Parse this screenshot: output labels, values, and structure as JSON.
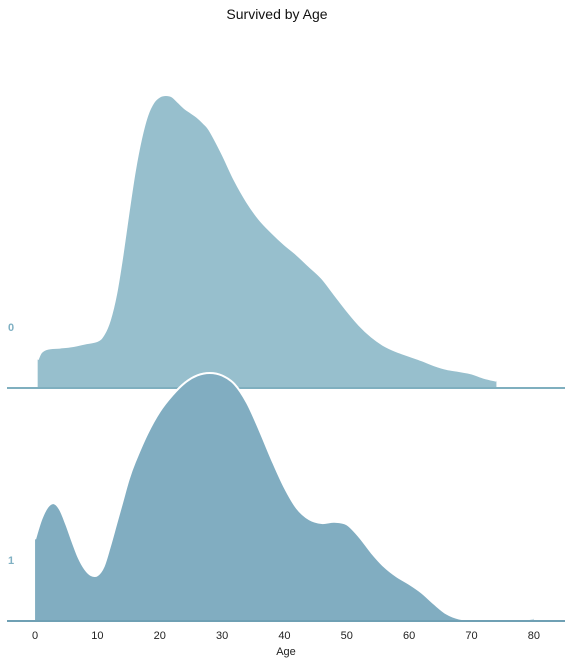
{
  "chart_data": {
    "type": "area",
    "title": "Survived by Age",
    "xlabel": "Age",
    "ylabel": "",
    "xlim": [
      -4.5,
      85
    ],
    "xticks": [
      0,
      10,
      20,
      30,
      40,
      50,
      60,
      70,
      80
    ],
    "grid": false,
    "legend": "none",
    "series": [
      {
        "name": "0",
        "color": "#97bfcd",
        "baseline_color": "#7fafbf",
        "label_color": "#7fb0c3",
        "x": [
          0.42,
          1,
          2,
          4,
          6,
          8,
          10,
          11,
          12,
          13,
          14,
          15,
          16,
          17,
          18,
          19,
          20,
          21,
          22,
          23,
          24,
          25,
          26,
          27,
          28,
          30,
          32,
          34,
          36,
          38,
          40,
          42,
          44,
          46,
          48,
          50,
          52,
          54,
          56,
          58,
          60,
          62,
          64,
          66,
          68,
          70,
          72,
          74
        ],
        "y": [
          0.097,
          0.122,
          0.134,
          0.138,
          0.143,
          0.152,
          0.161,
          0.182,
          0.232,
          0.32,
          0.45,
          0.6,
          0.74,
          0.85,
          0.93,
          0.975,
          0.995,
          1.0,
          0.995,
          0.975,
          0.955,
          0.94,
          0.925,
          0.905,
          0.88,
          0.8,
          0.71,
          0.635,
          0.575,
          0.53,
          0.49,
          0.455,
          0.415,
          0.375,
          0.32,
          0.265,
          0.215,
          0.175,
          0.145,
          0.125,
          0.11,
          0.095,
          0.078,
          0.065,
          0.058,
          0.05,
          0.035,
          0.025
        ]
      },
      {
        "name": "1",
        "color": "#81adc1",
        "baseline_color": "#6fa0b4",
        "label_color": "#7fb0c3",
        "x": [
          0,
          1,
          2,
          3,
          4,
          5,
          6,
          7,
          8,
          9,
          10,
          11,
          12,
          13,
          14,
          15,
          16,
          18,
          20,
          22,
          24,
          26,
          28,
          30,
          32,
          34,
          36,
          38,
          40,
          42,
          44,
          46,
          48,
          50,
          52,
          54,
          56,
          58,
          60,
          62,
          64,
          66,
          68,
          70,
          72,
          74,
          76,
          78,
          80
        ],
        "y": [
          0.33,
          0.41,
          0.46,
          0.475,
          0.45,
          0.39,
          0.32,
          0.255,
          0.21,
          0.185,
          0.185,
          0.22,
          0.3,
          0.39,
          0.48,
          0.57,
          0.64,
          0.755,
          0.845,
          0.91,
          0.96,
          0.99,
          1.0,
          0.99,
          0.955,
          0.88,
          0.77,
          0.65,
          0.54,
          0.455,
          0.41,
          0.395,
          0.4,
          0.39,
          0.34,
          0.275,
          0.22,
          0.18,
          0.15,
          0.115,
          0.07,
          0.03,
          0.01,
          0.005,
          0.005,
          0.005,
          0.005,
          0.005,
          0.01
        ]
      }
    ]
  }
}
